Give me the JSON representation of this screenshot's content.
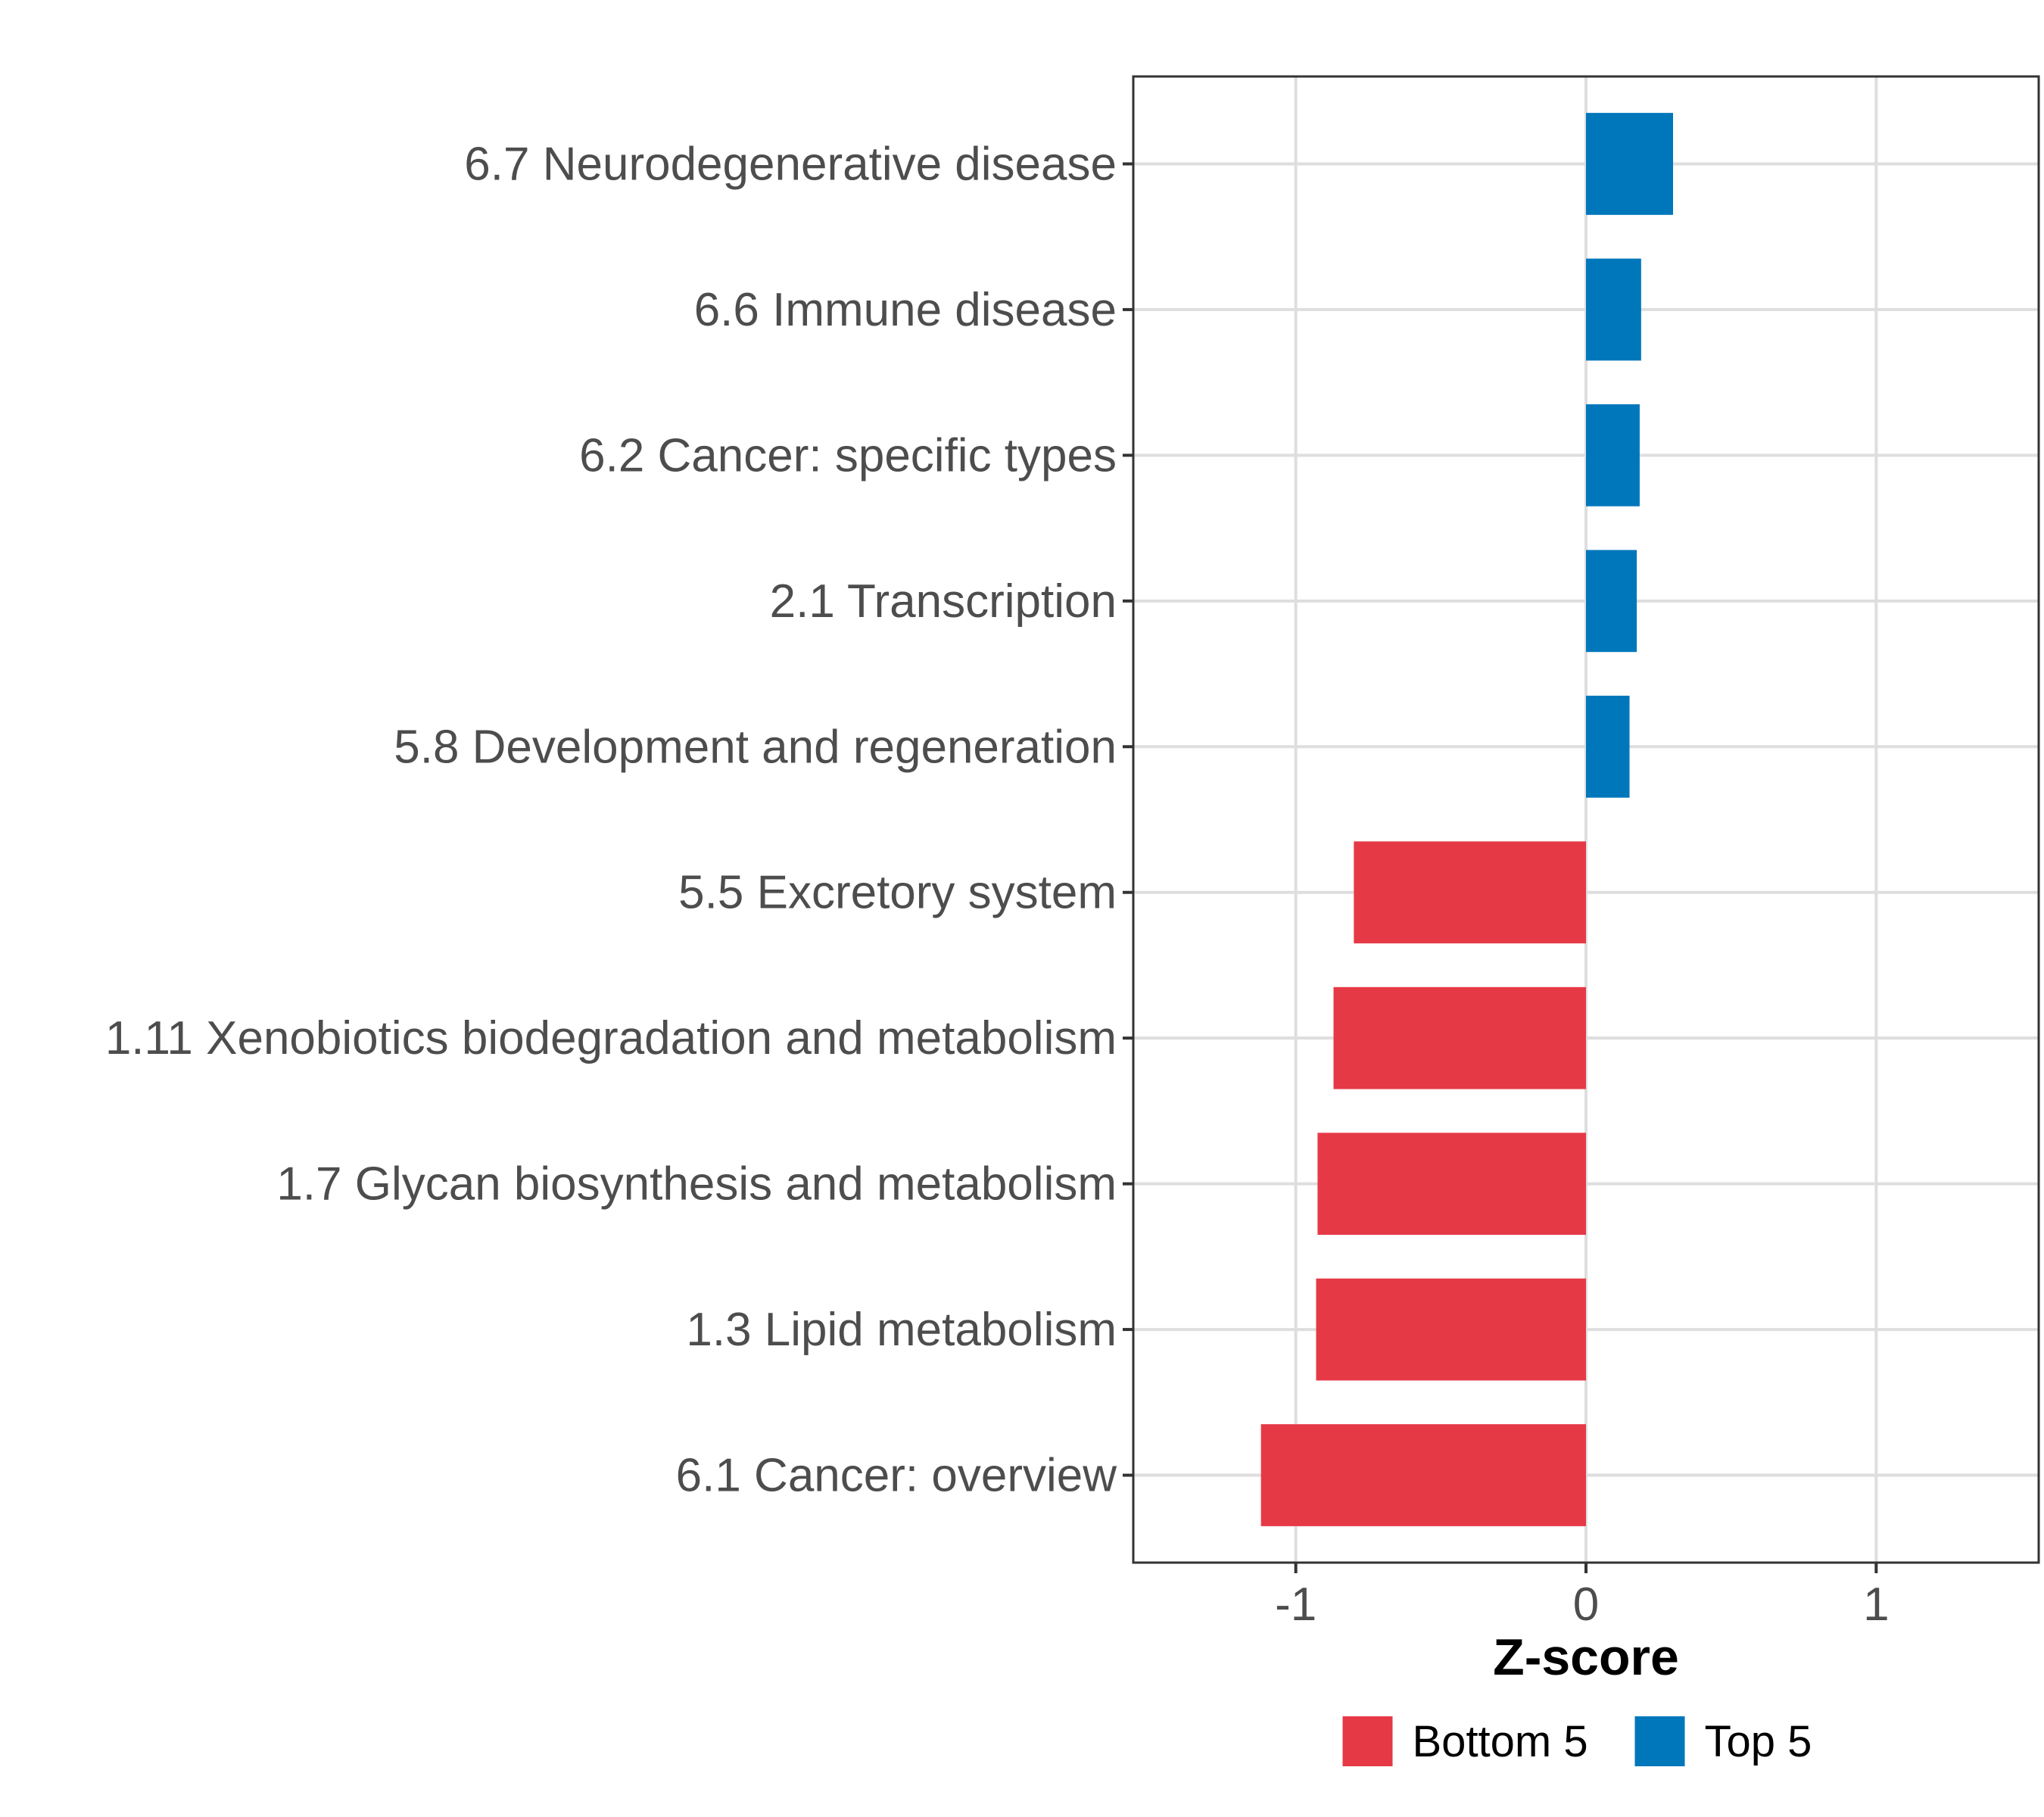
{
  "chart_data": {
    "type": "bar",
    "orientation": "horizontal",
    "title": "",
    "xlabel": "Z-score",
    "ylabel": "",
    "xlim": [
      -1.56,
      1.56
    ],
    "xticks": [
      -1,
      0,
      1
    ],
    "xtick_labels": [
      "-1",
      "0",
      "1"
    ],
    "grid": true,
    "legend_position": "bottom",
    "categories": [
      "6.7 Neurodegenerative disease",
      "6.6 Immune disease",
      "6.2 Cancer: specific types",
      "2.1 Transcription",
      "5.8 Development and regeneration",
      "5.5 Excretory system",
      "1.11 Xenobiotics biodegradation and metabolism",
      "1.7 Glycan biosynthesis and metabolism",
      "1.3 Lipid metabolism",
      "6.1 Cancer: overview"
    ],
    "values": [
      0.3,
      0.19,
      0.185,
      0.175,
      0.15,
      -0.8,
      -0.87,
      -0.925,
      -0.93,
      -1.12
    ],
    "groups": [
      "Top 5",
      "Top 5",
      "Top 5",
      "Top 5",
      "Top 5",
      "Bottom 5",
      "Bottom 5",
      "Bottom 5",
      "Bottom 5",
      "Bottom 5"
    ],
    "legend": [
      {
        "name": "Bottom 5",
        "color": "#E63946"
      },
      {
        "name": "Top 5",
        "color": "#0077BB"
      }
    ]
  }
}
